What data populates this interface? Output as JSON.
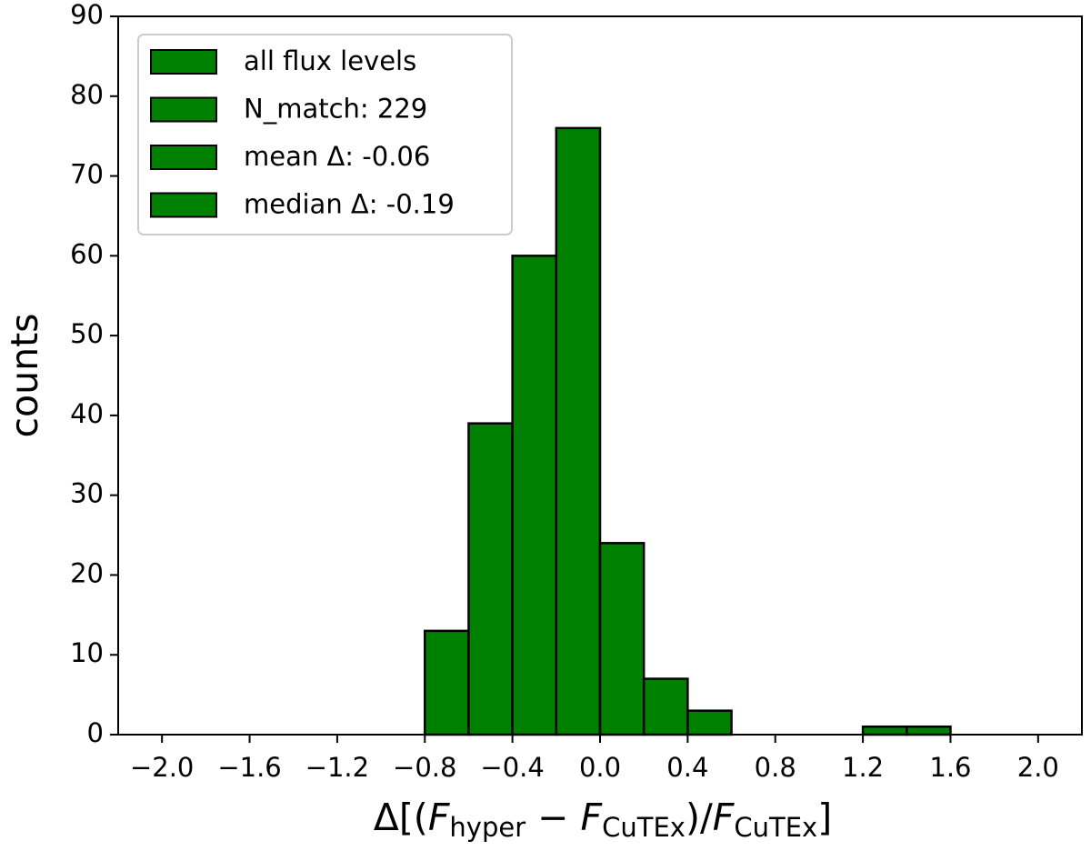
{
  "chart_data": {
    "type": "histogram",
    "ylabel": "counts",
    "xlabel": [
      {
        "text": "Δ[("
      },
      {
        "text": "F",
        "italic": true
      },
      {
        "text": "hyper",
        "sub": true
      },
      {
        "text": " − "
      },
      {
        "text": "F",
        "italic": true
      },
      {
        "text": "CuTEx",
        "sub": true
      },
      {
        "text": ")/"
      },
      {
        "text": "F",
        "italic": true
      },
      {
        "text": "CuTEx",
        "sub": true
      },
      {
        "text": "]"
      }
    ],
    "bins": [
      -2.0,
      -1.8,
      -1.6,
      -1.4,
      -1.2,
      -1.0,
      -0.8,
      -0.6,
      -0.4,
      -0.2,
      0.0,
      0.2,
      0.4,
      0.6,
      0.8,
      1.0,
      1.2,
      1.4,
      1.6,
      1.8,
      2.0
    ],
    "values": [
      0,
      0,
      0,
      0,
      0,
      0,
      13,
      39,
      60,
      76,
      24,
      7,
      3,
      0,
      0,
      0,
      1,
      1,
      0,
      0
    ],
    "color": "#008000",
    "edgecolor": "#000000",
    "legend": [
      "all flux levels",
      "N_match: 229",
      "mean Δ: -0.06",
      "median Δ: -0.19"
    ],
    "legend_loc": "upper left",
    "xlim": [
      -2.2,
      2.2
    ],
    "ylim": [
      0,
      90
    ],
    "xticks": [
      {
        "value": -2.0,
        "label": "−2.0"
      },
      {
        "value": -1.6,
        "label": "−1.6"
      },
      {
        "value": -1.2,
        "label": "−1.2"
      },
      {
        "value": -0.8,
        "label": "−0.8"
      },
      {
        "value": -0.4,
        "label": "−0.4"
      },
      {
        "value": 0.0,
        "label": "0.0"
      },
      0.4,
      0.8,
      1.2,
      1.6,
      {
        "value": 2.0,
        "label": "2.0"
      }
    ],
    "yticks": [
      0,
      10,
      20,
      30,
      40,
      50,
      60,
      70,
      80,
      90
    ],
    "grid": false
  }
}
